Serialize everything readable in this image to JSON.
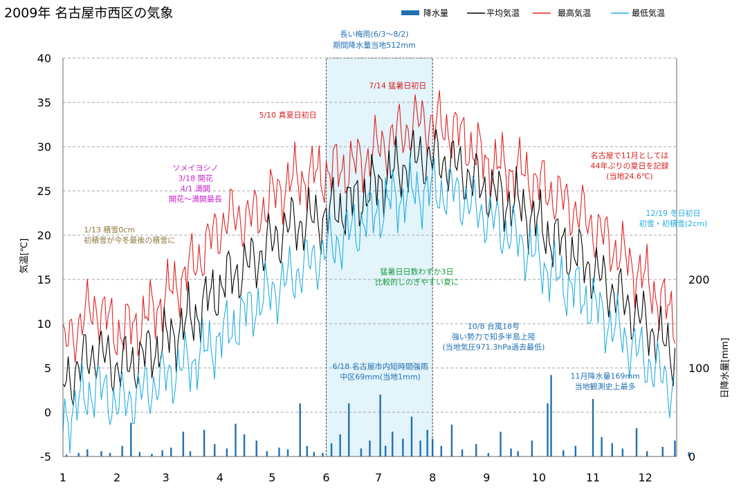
{
  "chart_data": {
    "type": "line",
    "title": "2009年 名古屋市西区の気象",
    "ylabel": "気温[℃]",
    "y2label": "日降水量[mm]",
    "ylim": [
      -5,
      40
    ],
    "y2lim": [
      0,
      450
    ],
    "yticks": [
      "40",
      "35",
      "30",
      "25",
      "20",
      "15",
      "10",
      "5",
      "0",
      "-5"
    ],
    "y2ticks": [
      "200",
      "100",
      "0"
    ],
    "xticks": [
      "1",
      "2",
      "3",
      "4",
      "5",
      "6",
      "7",
      "8",
      "9",
      "10",
      "11",
      "12"
    ],
    "grid": true,
    "legend": [
      {
        "name": "降水量",
        "color": "#1f6fb2",
        "kind": "bar"
      },
      {
        "name": "平均気温",
        "color": "#000000",
        "kind": "line"
      },
      {
        "name": "最高気温",
        "color": "#e02020",
        "kind": "line"
      },
      {
        "name": "最低気温",
        "color": "#22aee0",
        "kind": "line"
      }
    ],
    "highlight_period": {
      "from_day": 152,
      "to_day": 213,
      "label": [
        "長い梅雨(6/3～8/2)",
        "期間降水量当地512mm"
      ]
    },
    "series": [
      {
        "name": "最高気温",
        "color": "#e02020",
        "points": [
          [
            1,
            7
          ],
          [
            10,
            10
          ],
          [
            20,
            12
          ],
          [
            32,
            9
          ],
          [
            45,
            10
          ],
          [
            60,
            13
          ],
          [
            77,
            17
          ],
          [
            95,
            22
          ],
          [
            110,
            22
          ],
          [
            130,
            26
          ],
          [
            150,
            27
          ],
          [
            170,
            28
          ],
          [
            190,
            31
          ],
          [
            207,
            33
          ],
          [
            225,
            32
          ],
          [
            245,
            28
          ],
          [
            265,
            27
          ],
          [
            280,
            25
          ],
          [
            300,
            22
          ],
          [
            320,
            18
          ],
          [
            335,
            15
          ],
          [
            350,
            11
          ],
          [
            365,
            7
          ]
        ]
      },
      {
        "name": "平均気温",
        "color": "#000000",
        "points": [
          [
            1,
            3
          ],
          [
            10,
            5
          ],
          [
            20,
            7
          ],
          [
            32,
            5
          ],
          [
            45,
            6
          ],
          [
            60,
            8
          ],
          [
            77,
            11
          ],
          [
            95,
            15
          ],
          [
            110,
            17
          ],
          [
            130,
            21
          ],
          [
            150,
            22
          ],
          [
            170,
            24
          ],
          [
            190,
            27
          ],
          [
            207,
            29
          ],
          [
            225,
            28
          ],
          [
            245,
            25
          ],
          [
            265,
            23
          ],
          [
            280,
            20
          ],
          [
            300,
            17
          ],
          [
            320,
            13
          ],
          [
            335,
            10
          ],
          [
            350,
            7
          ],
          [
            365,
            4
          ]
        ]
      },
      {
        "name": "最低気温",
        "color": "#22aee0",
        "points": [
          [
            1,
            -1
          ],
          [
            10,
            1
          ],
          [
            20,
            3
          ],
          [
            32,
            1
          ],
          [
            45,
            2
          ],
          [
            60,
            4
          ],
          [
            77,
            6
          ],
          [
            95,
            9
          ],
          [
            110,
            12
          ],
          [
            130,
            15
          ],
          [
            150,
            18
          ],
          [
            170,
            21
          ],
          [
            190,
            24
          ],
          [
            207,
            25
          ],
          [
            225,
            25
          ],
          [
            245,
            22
          ],
          [
            265,
            19
          ],
          [
            280,
            16
          ],
          [
            300,
            13
          ],
          [
            320,
            9
          ],
          [
            335,
            6
          ],
          [
            350,
            3
          ],
          [
            365,
            0
          ]
        ]
      }
    ],
    "precipitation": [
      {
        "day": 3,
        "mm": 2
      },
      {
        "day": 10,
        "mm": 4
      },
      {
        "day": 15,
        "mm": 8
      },
      {
        "day": 23,
        "mm": 6
      },
      {
        "day": 28,
        "mm": 4
      },
      {
        "day": 35,
        "mm": 12
      },
      {
        "day": 40,
        "mm": 38
      },
      {
        "day": 45,
        "mm": 5
      },
      {
        "day": 52,
        "mm": 3
      },
      {
        "day": 58,
        "mm": 7
      },
      {
        "day": 63,
        "mm": 10
      },
      {
        "day": 70,
        "mm": 28
      },
      {
        "day": 74,
        "mm": 6
      },
      {
        "day": 82,
        "mm": 30
      },
      {
        "day": 88,
        "mm": 14
      },
      {
        "day": 95,
        "mm": 9
      },
      {
        "day": 100,
        "mm": 37
      },
      {
        "day": 105,
        "mm": 25
      },
      {
        "day": 112,
        "mm": 18
      },
      {
        "day": 118,
        "mm": 6
      },
      {
        "day": 125,
        "mm": 10
      },
      {
        "day": 130,
        "mm": 8
      },
      {
        "day": 137,
        "mm": 60
      },
      {
        "day": 141,
        "mm": 12
      },
      {
        "day": 145,
        "mm": 5
      },
      {
        "day": 150,
        "mm": 4
      },
      {
        "day": 155,
        "mm": 15
      },
      {
        "day": 160,
        "mm": 25
      },
      {
        "day": 165,
        "mm": 60
      },
      {
        "day": 172,
        "mm": 9
      },
      {
        "day": 177,
        "mm": 18
      },
      {
        "day": 183,
        "mm": 70
      },
      {
        "day": 186,
        "mm": 12
      },
      {
        "day": 190,
        "mm": 28
      },
      {
        "day": 196,
        "mm": 20
      },
      {
        "day": 201,
        "mm": 45
      },
      {
        "day": 206,
        "mm": 18
      },
      {
        "day": 210,
        "mm": 30
      },
      {
        "day": 213,
        "mm": 20
      },
      {
        "day": 218,
        "mm": 12
      },
      {
        "day": 224,
        "mm": 36
      },
      {
        "day": 230,
        "mm": 8
      },
      {
        "day": 238,
        "mm": 14
      },
      {
        "day": 245,
        "mm": 4
      },
      {
        "day": 252,
        "mm": 28
      },
      {
        "day": 258,
        "mm": 9
      },
      {
        "day": 262,
        "mm": 6
      },
      {
        "day": 270,
        "mm": 18
      },
      {
        "day": 279,
        "mm": 60
      },
      {
        "day": 281,
        "mm": 92
      },
      {
        "day": 288,
        "mm": 7
      },
      {
        "day": 295,
        "mm": 12
      },
      {
        "day": 305,
        "mm": 65
      },
      {
        "day": 310,
        "mm": 22
      },
      {
        "day": 316,
        "mm": 15
      },
      {
        "day": 322,
        "mm": 9
      },
      {
        "day": 330,
        "mm": 32
      },
      {
        "day": 336,
        "mm": 6
      },
      {
        "day": 345,
        "mm": 11
      },
      {
        "day": 352,
        "mm": 18
      },
      {
        "day": 360,
        "mm": 5
      }
    ],
    "annotations": [
      {
        "day": 13,
        "temp": 20.3,
        "align": "start",
        "color": "#8c7a3c",
        "lines": [
          "1/13  積雪0cm",
          "初積雪が今冬最後の積雪に"
        ]
      },
      {
        "day": 77,
        "temp": 27.3,
        "align": "middle",
        "color": "#cc22cc",
        "lines": [
          "ソメイヨシノ",
          "3/18 開花",
          "4/1 満開",
          "開花～満開最長"
        ]
      },
      {
        "day": 130,
        "temp": 33.3,
        "align": "middle",
        "color": "#d41c1c",
        "lines": [
          "5/10 真夏日初日"
        ]
      },
      {
        "day": 193,
        "temp": 36.6,
        "align": "middle",
        "color": "#d41c1c",
        "lines": [
          "7/14 猛暑日初日"
        ]
      },
      {
        "day": 204,
        "temp": 15.6,
        "align": "middle",
        "color": "#1a9b3c",
        "lines": [
          "猛暑日日数わずか3日",
          "比較的しのぎやすい夏に"
        ]
      },
      {
        "day": 183,
        "temp": 4.9,
        "align": "middle",
        "color": "#1f6fb2",
        "lines": [
          "6/18  名古屋市内短時間強雨",
          "中区69mm(当地1mm)"
        ]
      },
      {
        "day": 248,
        "temp": 9.4,
        "align": "middle",
        "color": "#1f6fb2",
        "lines": [
          "10/8  台風18号",
          "強い勢力で知多半島上陸",
          "(当地気圧971.3hPa過去最低)"
        ]
      },
      {
        "day": 312,
        "temp": 3.8,
        "align": "middle",
        "color": "#1f6fb2",
        "lines": [
          "11月降水量169mm",
          "当地観測史上最多"
        ]
      },
      {
        "day": 326,
        "temp": 28.7,
        "align": "middle",
        "color": "#d41c1c",
        "lines": [
          "名古屋で11月としては",
          "44年ぶりの夏日を記録",
          "(当地24.6℃)"
        ]
      },
      {
        "day": 351,
        "temp": 22.2,
        "align": "middle",
        "color": "#22aee0",
        "lines": [
          "12/19  冬日初日",
          "初雪・初積雪(2cm)"
        ]
      }
    ]
  }
}
